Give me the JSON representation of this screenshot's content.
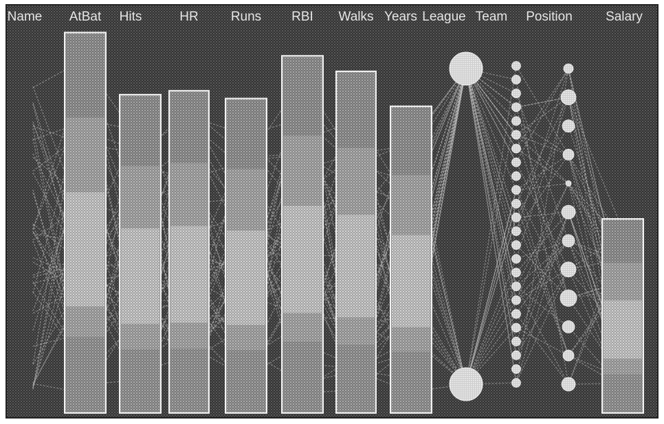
{
  "chart_data": {
    "type": "parallel-coordinates",
    "title": "",
    "dimensions": [
      {
        "name": "Name",
        "kind": "label"
      },
      {
        "name": "AtBat",
        "kind": "bar",
        "value": 0.98
      },
      {
        "name": "Hits",
        "kind": "bar",
        "value": 0.82
      },
      {
        "name": "HR",
        "kind": "bar",
        "value": 0.83
      },
      {
        "name": "Runs",
        "kind": "bar",
        "value": 0.81
      },
      {
        "name": "RBI",
        "kind": "bar",
        "value": 0.92
      },
      {
        "name": "Walks",
        "kind": "bar",
        "value": 0.88
      },
      {
        "name": "Years",
        "kind": "bar",
        "value": 0.79
      },
      {
        "name": "League",
        "kind": "categorical",
        "categories": 2
      },
      {
        "name": "Team",
        "kind": "categorical",
        "categories": 24
      },
      {
        "name": "Position",
        "kind": "categorical",
        "categories": 12
      },
      {
        "name": "Salary",
        "kind": "bar",
        "value": 0.5
      }
    ],
    "grid": false,
    "legend": "none"
  },
  "colors": {
    "background": "#3c3c3c",
    "bar_fill": "#9a9a9a",
    "bar_light": "#c8c8c8",
    "bar_dark": "#6e6e6e",
    "bar_border": "#f2f2f2",
    "polyline": "#bdbdbd",
    "node": "#dcdcdc",
    "label": "#e8e8e8"
  }
}
